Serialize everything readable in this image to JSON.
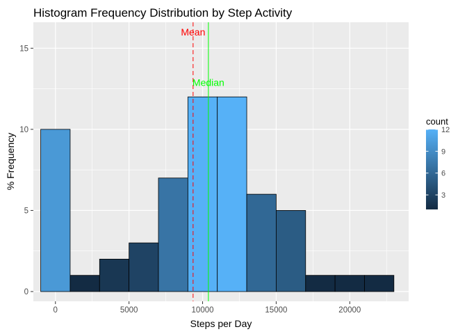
{
  "chart_data": {
    "type": "bar",
    "title": "Histogram Frequency Distribution by Step Activity",
    "xlabel": "Steps per Day",
    "ylabel": "% Frequency",
    "xlim": [
      -1500,
      24000
    ],
    "ylim": [
      -0.6,
      16.6
    ],
    "x_ticks": [
      0,
      5000,
      10000,
      15000,
      20000
    ],
    "y_ticks": [
      0,
      5,
      10,
      15
    ],
    "bin_width": 2000,
    "bins": [
      {
        "x0": -1000,
        "x1": 1000,
        "value": 10
      },
      {
        "x0": 1000,
        "x1": 3000,
        "value": 1
      },
      {
        "x0": 3000,
        "x1": 5000,
        "value": 2
      },
      {
        "x0": 5000,
        "x1": 7000,
        "value": 3
      },
      {
        "x0": 7000,
        "x1": 9000,
        "value": 7
      },
      {
        "x0": 9000,
        "x1": 11000,
        "value": 12
      },
      {
        "x0": 11000,
        "x1": 13000,
        "value": 12
      },
      {
        "x0": 13000,
        "x1": 15000,
        "value": 6
      },
      {
        "x0": 15000,
        "x1": 17000,
        "value": 5
      },
      {
        "x0": 17000,
        "x1": 19000,
        "value": 1
      },
      {
        "x0": 19000,
        "x1": 21000,
        "value": 1
      },
      {
        "x0": 21000,
        "x1": 23000,
        "value": 1
      }
    ],
    "vlines": [
      {
        "label": "Mean",
        "x": 9354,
        "color": "#ff0000",
        "dashed": true,
        "label_y": 16
      },
      {
        "label": "Median",
        "x": 10395,
        "color": "#00ff00",
        "dashed": false,
        "label_y": 12.9
      }
    ],
    "legend": {
      "title": "count",
      "ticks": [
        3,
        6,
        9,
        12
      ],
      "min": 1,
      "max": 12,
      "low_color": "#132b43",
      "high_color": "#56b1f7",
      "position": "right"
    },
    "grid": true,
    "panel_background": "#ebebeb"
  }
}
